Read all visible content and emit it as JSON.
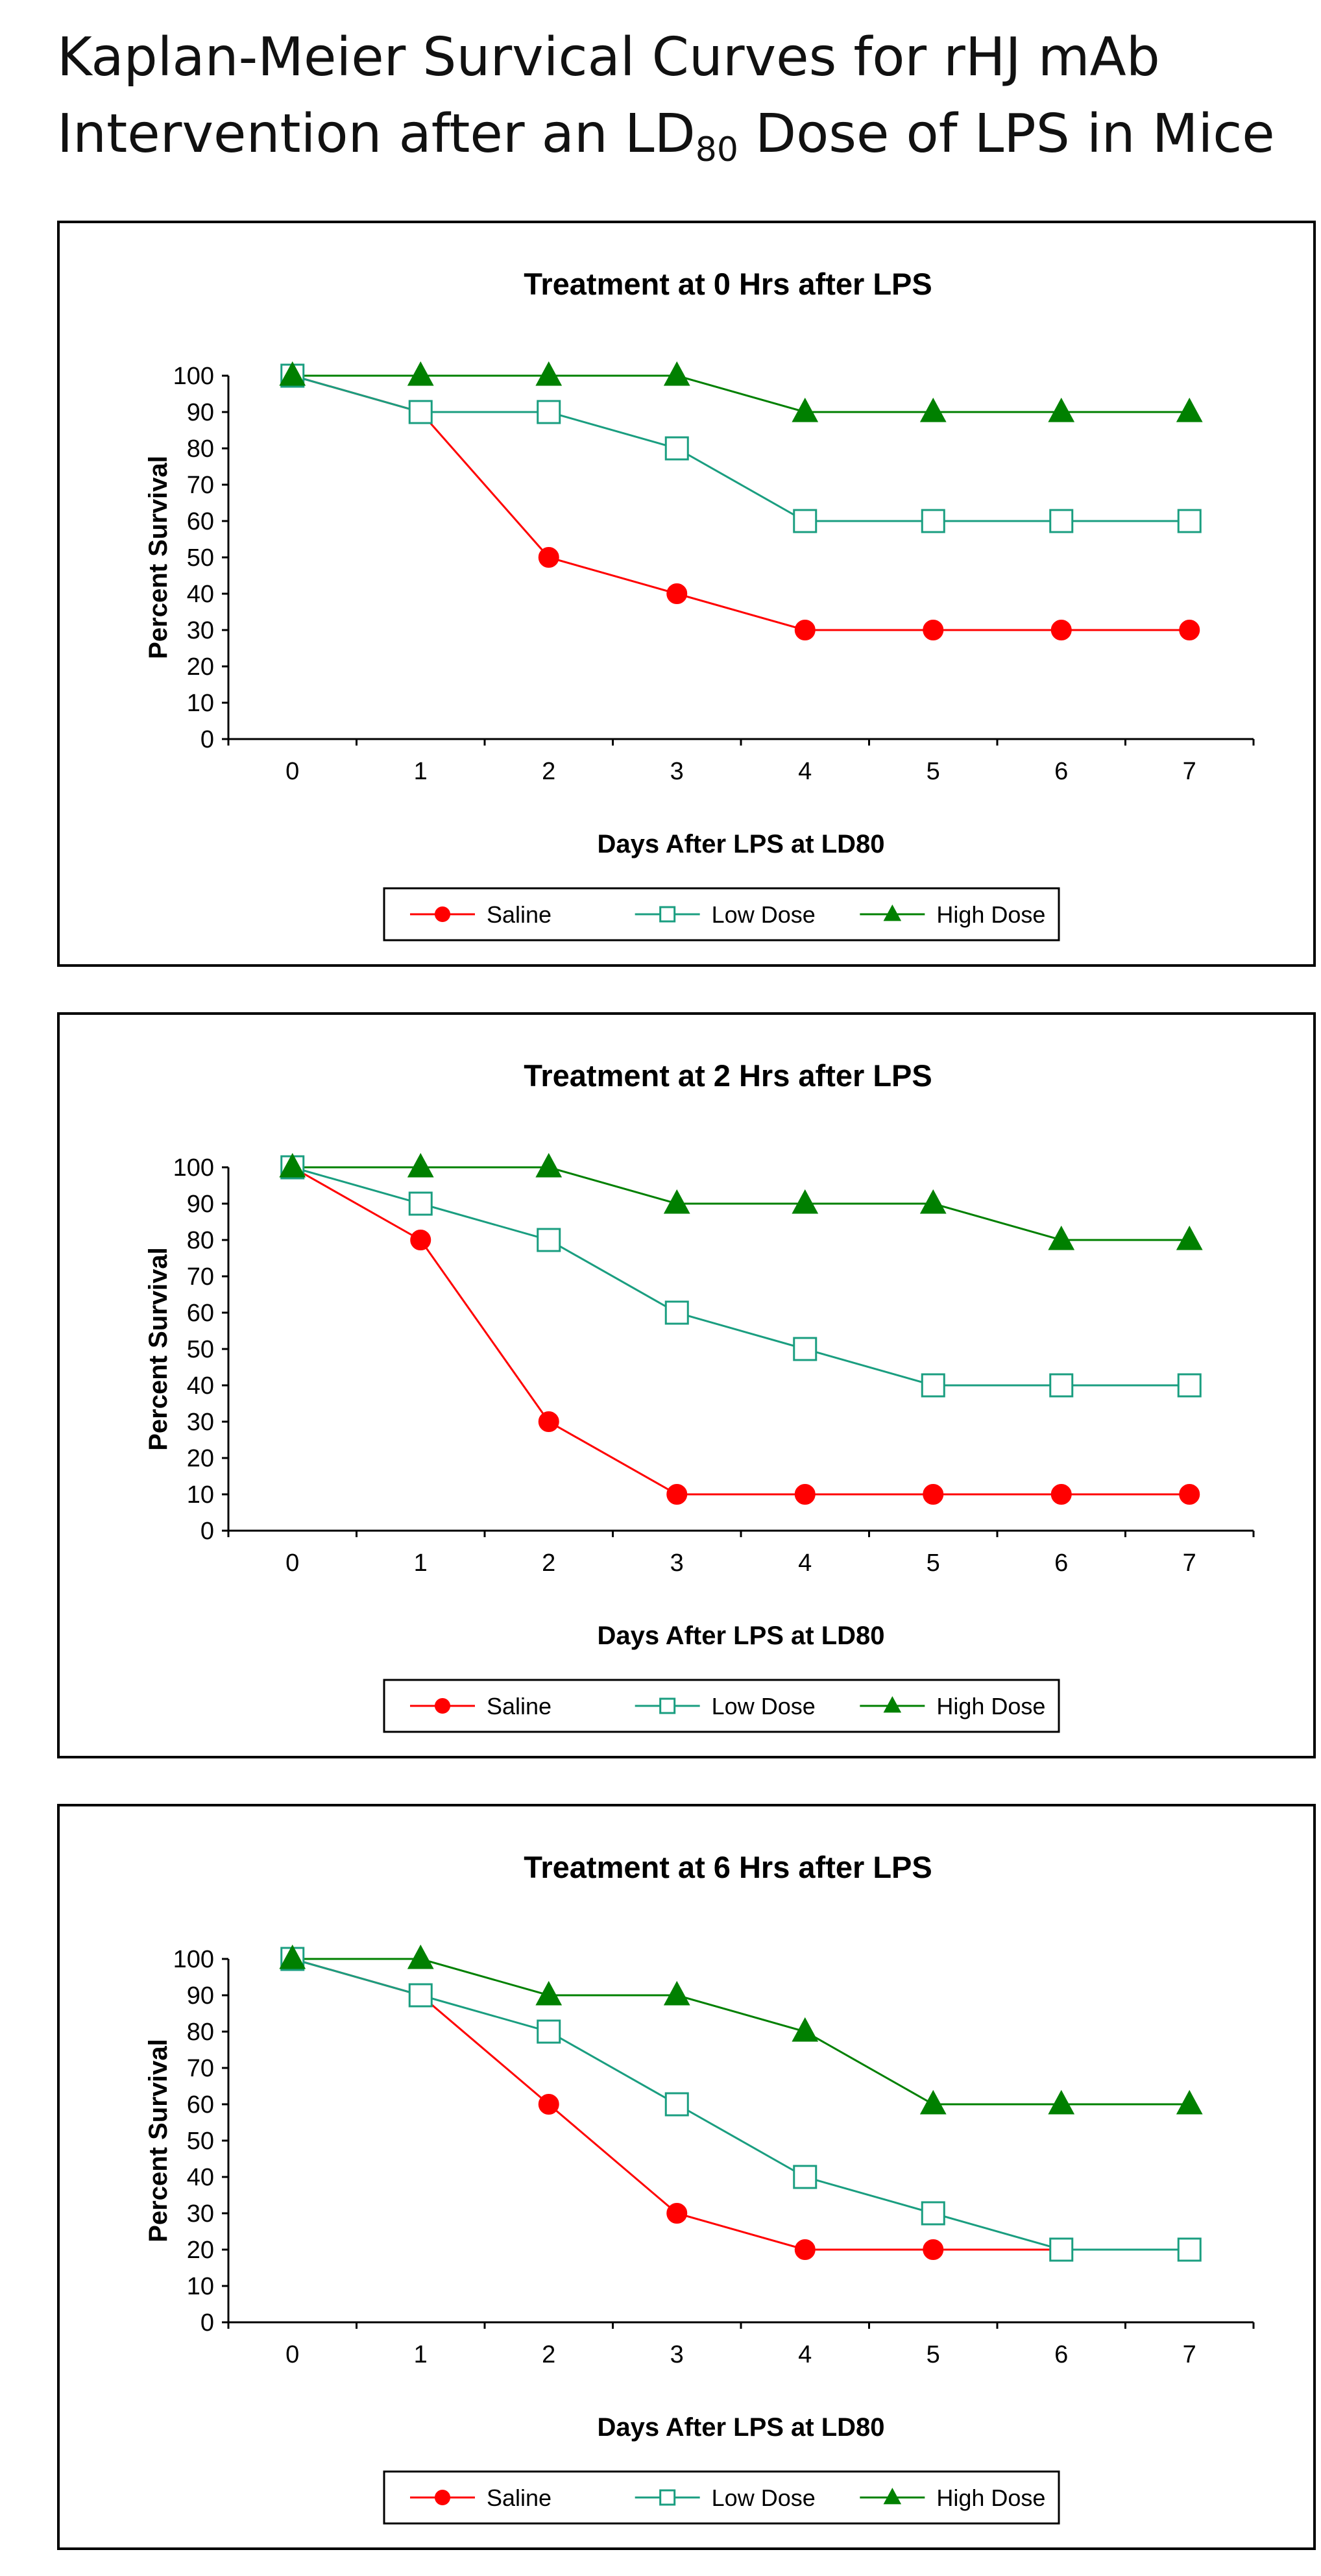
{
  "page": {
    "title_line1": "Kaplan-Meier Survical Curves for rHJ mAb",
    "title_line2_prefix": "Intervention after an LD",
    "title_line2_sub": "80",
    "title_line2_suffix": " Dose of LPS in Mice"
  },
  "colors": {
    "saline": "#ff0000",
    "low_dose": "#1a9e80",
    "high_dose": "#008000",
    "axis": "#000000"
  },
  "chart_data": [
    {
      "type": "line",
      "title": "Treatment at 0 Hrs after LPS",
      "xlabel": "Days After LPS at LD80",
      "ylabel": "Percent Survival",
      "x": [
        0,
        1,
        2,
        3,
        4,
        5,
        6,
        7
      ],
      "ylim": [
        0,
        100
      ],
      "yticks": [
        0,
        10,
        20,
        30,
        40,
        50,
        60,
        70,
        80,
        90,
        100
      ],
      "legend_position": "bottom-center",
      "series": [
        {
          "name": "Saline",
          "marker": "circle",
          "values": [
            100,
            90,
            50,
            40,
            30,
            30,
            30,
            30
          ]
        },
        {
          "name": "Low Dose",
          "marker": "square-open",
          "values": [
            100,
            90,
            90,
            80,
            60,
            60,
            60,
            60
          ]
        },
        {
          "name": "High Dose",
          "marker": "triangle",
          "values": [
            100,
            100,
            100,
            100,
            90,
            90,
            90,
            90
          ]
        }
      ]
    },
    {
      "type": "line",
      "title": "Treatment at 2 Hrs after LPS",
      "xlabel": "Days After LPS at LD80",
      "ylabel": "Percent Survival",
      "x": [
        0,
        1,
        2,
        3,
        4,
        5,
        6,
        7
      ],
      "ylim": [
        0,
        100
      ],
      "yticks": [
        0,
        10,
        20,
        30,
        40,
        50,
        60,
        70,
        80,
        90,
        100
      ],
      "legend_position": "bottom-center",
      "series": [
        {
          "name": "Saline",
          "marker": "circle",
          "values": [
            100,
            80,
            30,
            10,
            10,
            10,
            10,
            10
          ]
        },
        {
          "name": "Low Dose",
          "marker": "square-open",
          "values": [
            100,
            90,
            80,
            60,
            50,
            40,
            40,
            40
          ]
        },
        {
          "name": "High Dose",
          "marker": "triangle",
          "values": [
            100,
            100,
            100,
            90,
            90,
            90,
            80,
            80
          ]
        }
      ]
    },
    {
      "type": "line",
      "title": "Treatment at 6 Hrs after LPS",
      "xlabel": "Days After LPS at LD80",
      "ylabel": "Percent Survival",
      "x": [
        0,
        1,
        2,
        3,
        4,
        5,
        6,
        7
      ],
      "ylim": [
        0,
        100
      ],
      "yticks": [
        0,
        10,
        20,
        30,
        40,
        50,
        60,
        70,
        80,
        90,
        100
      ],
      "legend_position": "bottom-center",
      "series": [
        {
          "name": "Saline",
          "marker": "circle",
          "values": [
            100,
            90,
            60,
            30,
            20,
            20,
            20,
            null
          ]
        },
        {
          "name": "Low Dose",
          "marker": "square-open",
          "values": [
            100,
            90,
            80,
            60,
            40,
            30,
            20,
            20
          ]
        },
        {
          "name": "High Dose",
          "marker": "triangle",
          "values": [
            100,
            100,
            90,
            90,
            80,
            60,
            60,
            60
          ]
        }
      ]
    }
  ]
}
